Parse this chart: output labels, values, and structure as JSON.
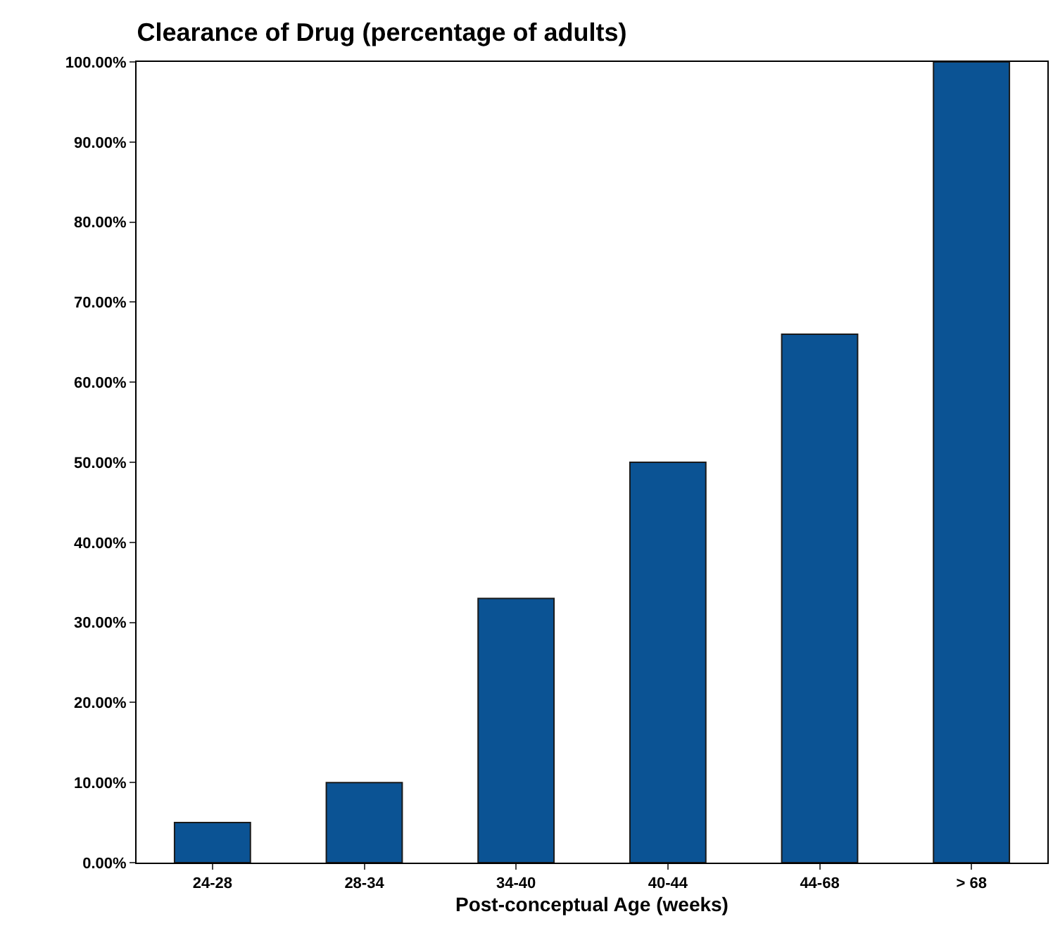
{
  "chart_data": {
    "type": "bar",
    "title": "Clearance of Drug (percentage of adults)",
    "xlabel": "Post-conceptual Age (weeks)",
    "categories": [
      "24-28",
      "28-34",
      "34-40",
      "40-44",
      "44-68",
      "> 68"
    ],
    "values": [
      5,
      10,
      33,
      50,
      66,
      100
    ],
    "color": "#0b5394",
    "ylim": [
      0,
      100
    ],
    "yticks": [
      {
        "value": 0,
        "label": "0.00%"
      },
      {
        "value": 10,
        "label": "10.00%"
      },
      {
        "value": 20,
        "label": "20.00%"
      },
      {
        "value": 30,
        "label": "30.00%"
      },
      {
        "value": 40,
        "label": "40.00%"
      },
      {
        "value": 50,
        "label": "50.00%"
      },
      {
        "value": 60,
        "label": "60.00%"
      },
      {
        "value": 70,
        "label": "70.00%"
      },
      {
        "value": 80,
        "label": "80.00%"
      },
      {
        "value": 90,
        "label": "90.00%"
      },
      {
        "value": 100,
        "label": "100.00%"
      }
    ],
    "grid": false
  }
}
